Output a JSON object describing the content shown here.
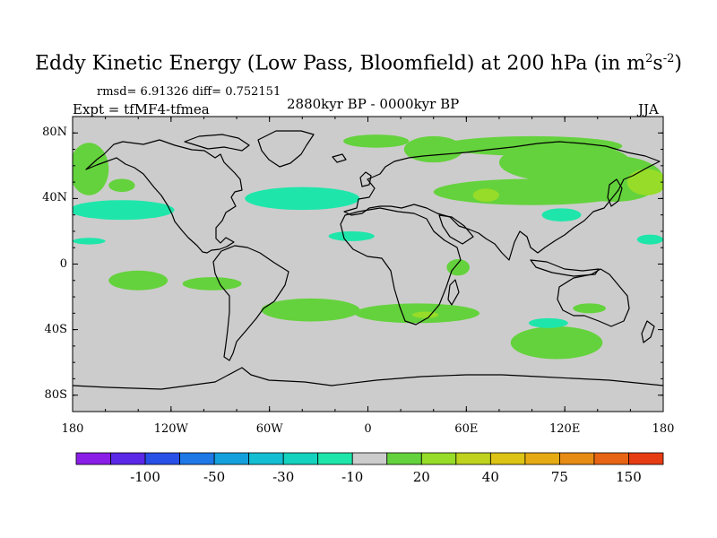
{
  "title": {
    "main": "Eddy Kinetic Energy (Low Pass, Bloomfield) at 200 hPa (in m",
    "sup1": "2",
    "mid": "s",
    "sup2": "-2",
    "close": ")"
  },
  "stats": "rmsd= 6.91326 diff= 0.752151",
  "experiment": "Expt = tfMF4-tfmea",
  "period": "2880kyr BP - 0000kyr BP",
  "season": "JJA",
  "axes": {
    "y_ticks": [
      {
        "label": "80N",
        "lat": 80
      },
      {
        "label": "40N",
        "lat": 40
      },
      {
        "label": "0",
        "lat": 0
      },
      {
        "label": "40S",
        "lat": -40
      },
      {
        "label": "80S",
        "lat": -80
      }
    ],
    "x_ticks": [
      {
        "label": "180",
        "lon": -180
      },
      {
        "label": "120W",
        "lon": -120
      },
      {
        "label": "60W",
        "lon": -60
      },
      {
        "label": "0",
        "lon": 0
      },
      {
        "label": "60E",
        "lon": 60
      },
      {
        "label": "120E",
        "lon": 120
      },
      {
        "label": "180",
        "lon": 180
      }
    ]
  },
  "colorbar": {
    "colors": [
      "#8a1ee6",
      "#5a28e6",
      "#2850e6",
      "#1e78e6",
      "#14a0dc",
      "#14bed2",
      "#14d2be",
      "#1ee6aa",
      "#cccccc",
      "#64d23c",
      "#96dc28",
      "#bed21e",
      "#dcc314",
      "#e6aa14",
      "#e68c14",
      "#e66414",
      "#e63c14"
    ],
    "labels": [
      {
        "text": "-100",
        "boundary": 2
      },
      {
        "text": "-50",
        "boundary": 4
      },
      {
        "text": "-30",
        "boundary": 6
      },
      {
        "text": "-10",
        "boundary": 8
      },
      {
        "text": "20",
        "boundary": 10
      },
      {
        "text": "40",
        "boundary": 12
      },
      {
        "text": "75",
        "boundary": 14
      },
      {
        "text": "150",
        "boundary": 16
      }
    ]
  },
  "regions": [
    {
      "name": "arctic-asia-positive",
      "level": 20,
      "lon": 100,
      "lat": 72,
      "rlon": 55,
      "rlat": 6
    },
    {
      "name": "siberia-positive",
      "level": 20,
      "lon": 120,
      "lat": 62,
      "rlon": 40,
      "rlat": 12
    },
    {
      "name": "north-atlantic-arctic-positive",
      "level": 20,
      "lon": 5,
      "lat": 75,
      "rlon": 20,
      "rlat": 4
    },
    {
      "name": "scandinavia-positive",
      "level": 20,
      "lon": 40,
      "lat": 70,
      "rlon": 18,
      "rlat": 8
    },
    {
      "name": "central-asia-positive",
      "level": 20,
      "lon": 100,
      "lat": 44,
      "rlon": 60,
      "rlat": 8
    },
    {
      "name": "east-asia-positive",
      "level": 20,
      "lon": 150,
      "lat": 52,
      "rlon": 30,
      "rlat": 14
    },
    {
      "name": "asia-core-positive",
      "level": 40,
      "lon": 72,
      "lat": 42,
      "rlon": 8,
      "rlat": 4
    },
    {
      "name": "japan-core-positive",
      "level": 40,
      "lon": 170,
      "lat": 50,
      "rlon": 12,
      "rlat": 8
    },
    {
      "name": "north-pacific-west-positive",
      "level": 20,
      "lon": -170,
      "lat": 58,
      "rlon": 12,
      "rlat": 16
    },
    {
      "name": "north-pacific-positive",
      "level": 20,
      "lon": -150,
      "lat": 48,
      "rlon": 8,
      "rlat": 4
    },
    {
      "name": "south-pacific-positive",
      "level": 20,
      "lon": -140,
      "lat": -10,
      "rlon": 18,
      "rlat": 6
    },
    {
      "name": "south-pacific-east-positive",
      "level": 20,
      "lon": -95,
      "lat": -12,
      "rlon": 18,
      "rlat": 4
    },
    {
      "name": "east-africa-positive",
      "level": 20,
      "lon": 55,
      "lat": -2,
      "rlon": 7,
      "rlat": 5
    },
    {
      "name": "south-atlantic-positive",
      "level": 20,
      "lon": -35,
      "lat": -28,
      "rlon": 30,
      "rlat": 7
    },
    {
      "name": "south-indian-positive",
      "level": 20,
      "lon": 30,
      "lat": -30,
      "rlon": 38,
      "rlat": 6
    },
    {
      "name": "south-indian-core-positive",
      "level": 40,
      "lon": 35,
      "lat": -31,
      "rlon": 8,
      "rlat": 2
    },
    {
      "name": "southern-ocean-positive",
      "level": 20,
      "lon": 115,
      "lat": -48,
      "rlon": 28,
      "rlat": 10
    },
    {
      "name": "australia-positive",
      "level": 20,
      "lon": 135,
      "lat": -27,
      "rlon": 10,
      "rlat": 3
    },
    {
      "name": "north-pacific-negative",
      "level": -10,
      "lon": -150,
      "lat": 33,
      "rlon": 32,
      "rlat": 6
    },
    {
      "name": "north-atlantic-negative",
      "level": -10,
      "lon": -40,
      "lat": 40,
      "rlon": 35,
      "rlat": 7
    },
    {
      "name": "atlantic-tropical-negative",
      "level": -10,
      "lon": -10,
      "lat": 17,
      "rlon": 14,
      "rlat": 3
    },
    {
      "name": "pacific-equatorial-negative",
      "level": -10,
      "lon": -170,
      "lat": 14,
      "rlon": 10,
      "rlat": 2
    },
    {
      "name": "west-pacific-negative",
      "level": -10,
      "lon": 172,
      "lat": 15,
      "rlon": 8,
      "rlat": 3
    },
    {
      "name": "asia-negative",
      "level": -10,
      "lon": 118,
      "lat": 30,
      "rlon": 12,
      "rlat": 4
    },
    {
      "name": "indian-ocean-negative",
      "level": -10,
      "lon": 110,
      "lat": -36,
      "rlon": 12,
      "rlat": 3
    }
  ]
}
